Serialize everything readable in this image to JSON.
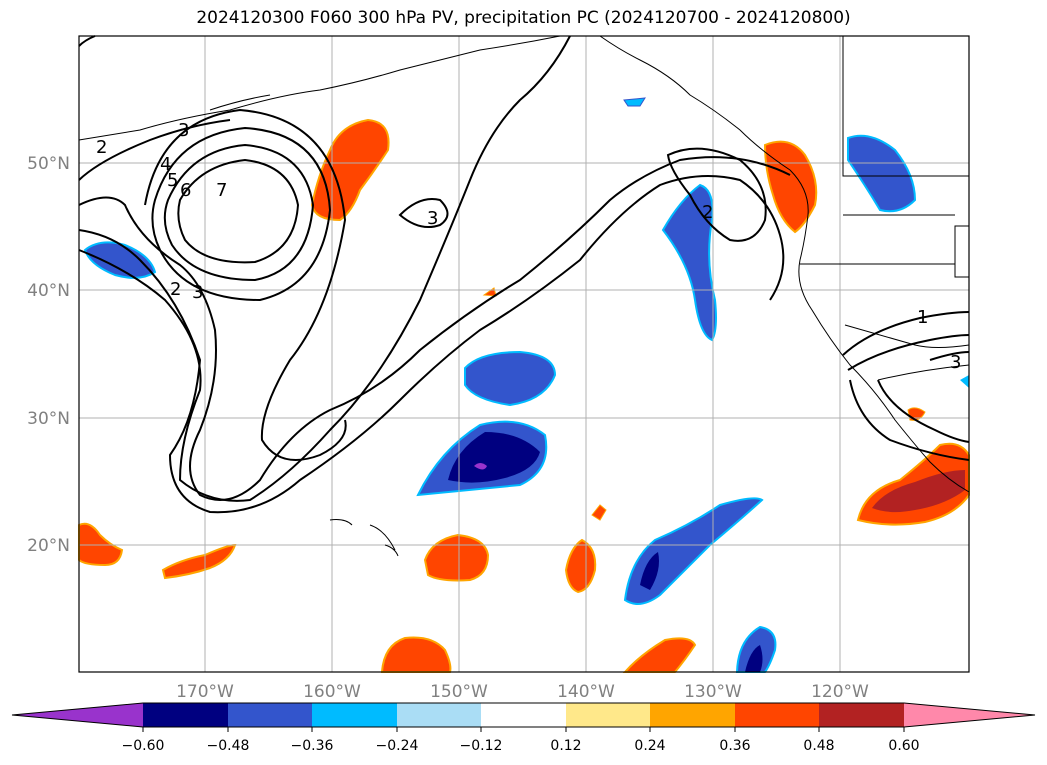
{
  "title": "2024120300 F060 300 hPa PV, precipitation PC (2024120700 - 2024120800)",
  "map": {
    "lat_labels": [
      "50°N",
      "40°N",
      "30°N",
      "20°N"
    ],
    "lon_labels": [
      "170°W",
      "160°W",
      "150°W",
      "140°W",
      "130°W",
      "120°W"
    ],
    "contour_labels": [
      "2",
      "3",
      "4",
      "5",
      "6",
      "7",
      "3",
      "2",
      "3",
      "2",
      "1",
      "3"
    ]
  },
  "colorbar": {
    "ticks": [
      "−0.60",
      "−0.48",
      "−0.36",
      "−0.24",
      "−0.12",
      "0.12",
      "0.24",
      "0.36",
      "0.48",
      "0.60"
    ],
    "colors": [
      "#9933cc",
      "#000080",
      "#3355cc",
      "#00bbff",
      "#aaddf5",
      "#ffffff",
      "#ffe88a",
      "#ffa500",
      "#ff4500",
      "#b22222",
      "#ff88aa"
    ]
  }
}
